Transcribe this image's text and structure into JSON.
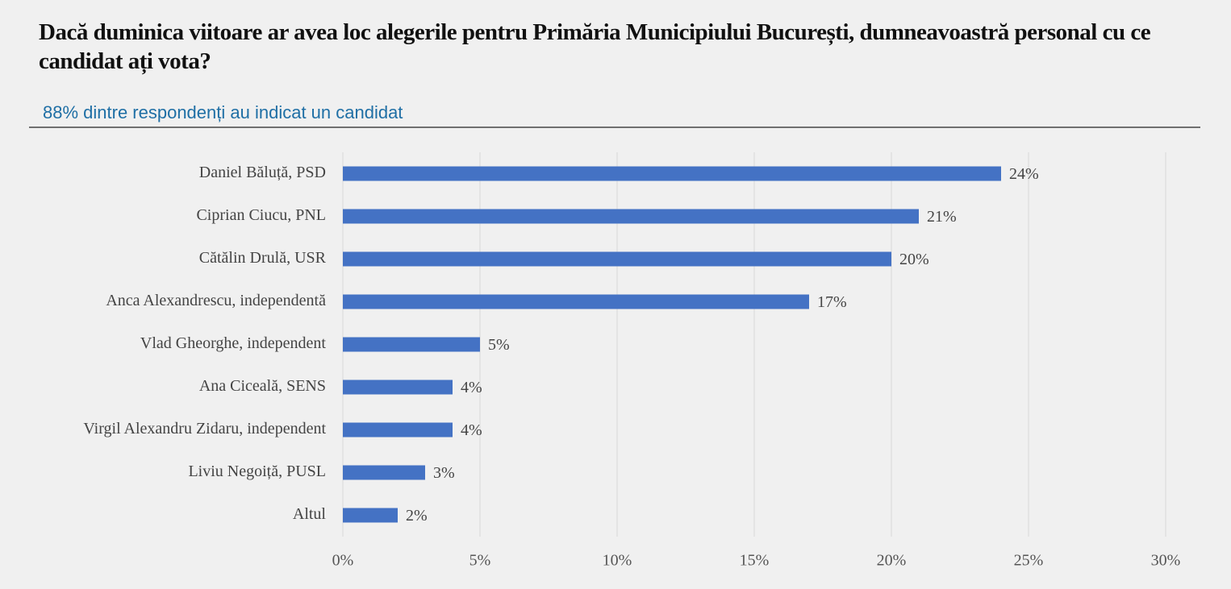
{
  "chart_data": {
    "type": "barh",
    "title": "Dacă duminica viitoare ar avea loc alegerile pentru Primăria Municipiului București, dumneavoastră personal cu ce candidat ați vota?",
    "subtitle": "88% dintre respondenți au indicat un candidat",
    "categories": [
      "Daniel Băluță, PSD",
      "Ciprian Ciucu, PNL",
      "Cătălin Drulă, USR",
      "Anca Alexandrescu, independentă",
      "Vlad Gheorghe, independent",
      "Ana Ciceală, SENS",
      "Virgil Alexandru Zidaru, independent",
      "Liviu Negoiță, PUSL",
      "Altul"
    ],
    "values": [
      24,
      21,
      20,
      17,
      5,
      4,
      4,
      3,
      2
    ],
    "value_labels": [
      "24%",
      "21%",
      "20%",
      "17%",
      "5%",
      "4%",
      "4%",
      "3%",
      "2%"
    ],
    "color": "#4472c4",
    "xlim": [
      0,
      30
    ],
    "xticks": [
      {
        "value": 0,
        "label": "0%"
      },
      {
        "value": 5,
        "label": "5%"
      },
      {
        "value": 10,
        "label": "10%"
      },
      {
        "value": 15,
        "label": "15%"
      },
      {
        "value": 20,
        "label": "20%"
      },
      {
        "value": 25,
        "label": "25%"
      },
      {
        "value": 30,
        "label": "30%"
      }
    ],
    "grid": true
  }
}
